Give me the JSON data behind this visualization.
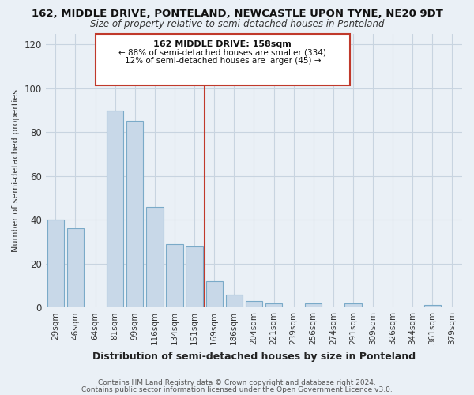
{
  "title": "162, MIDDLE DRIVE, PONTELAND, NEWCASTLE UPON TYNE, NE20 9DT",
  "subtitle": "Size of property relative to semi-detached houses in Ponteland",
  "xlabel": "Distribution of semi-detached houses by size in Ponteland",
  "ylabel": "Number of semi-detached properties",
  "bar_labels": [
    "29sqm",
    "46sqm",
    "64sqm",
    "81sqm",
    "99sqm",
    "116sqm",
    "134sqm",
    "151sqm",
    "169sqm",
    "186sqm",
    "204sqm",
    "221sqm",
    "239sqm",
    "256sqm",
    "274sqm",
    "291sqm",
    "309sqm",
    "326sqm",
    "344sqm",
    "361sqm",
    "379sqm"
  ],
  "bar_values": [
    40,
    36,
    0,
    90,
    85,
    46,
    29,
    28,
    12,
    6,
    3,
    2,
    0,
    2,
    0,
    2,
    0,
    0,
    0,
    1,
    0
  ],
  "bar_color": "#c8d8e8",
  "bar_edge_color": "#7aaac8",
  "highlight_color": "#c0392b",
  "vline_x_index": 7,
  "annotation_title": "162 MIDDLE DRIVE: 158sqm",
  "annotation_line1": "← 88% of semi-detached houses are smaller (334)",
  "annotation_line2": "12% of semi-detached houses are larger (45) →",
  "ylim": [
    0,
    125
  ],
  "yticks": [
    0,
    20,
    40,
    60,
    80,
    100,
    120
  ],
  "footer_line1": "Contains HM Land Registry data © Crown copyright and database right 2024.",
  "footer_line2": "Contains public sector information licensed under the Open Government Licence v3.0.",
  "bg_color": "#eaf0f6",
  "plot_bg_color": "#eaf0f6",
  "grid_color": "#c8d4e0"
}
